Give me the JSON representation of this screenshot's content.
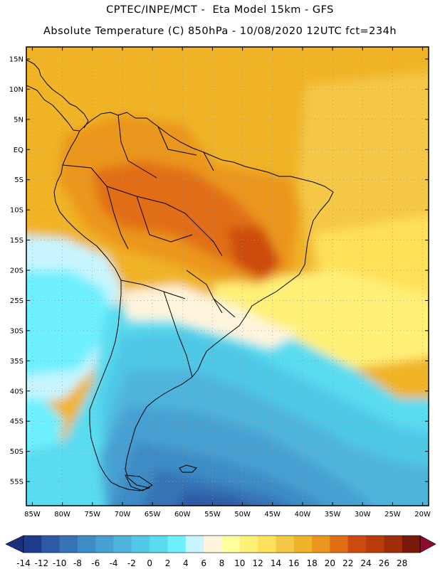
{
  "header": {
    "line1": "CPTEC/INPE/MCT -  Eta Model 15km - GFS",
    "line2": "Absolute Temperature (C) 850hPa - 10/08/2020 12UTC fct=234h"
  },
  "map": {
    "region": "South America",
    "projection": "lat-lon",
    "lon_range": [
      -86,
      -19
    ],
    "lat_range": [
      -59,
      17
    ],
    "lon_ticks": [
      "85W",
      "80W",
      "75W",
      "70W",
      "65W",
      "60W",
      "55W",
      "50W",
      "45W",
      "40W",
      "35W",
      "30W",
      "25W",
      "20W"
    ],
    "lat_ticks": [
      "15N",
      "10N",
      "5N",
      "EQ",
      "5S",
      "10S",
      "15S",
      "20S",
      "25S",
      "30S",
      "35S",
      "40S",
      "45S",
      "50S",
      "55S"
    ],
    "gridlines": "dotted",
    "field": "temperature at 850hPa"
  },
  "colorbar": {
    "labels": [
      "-14",
      "-12",
      "-10",
      "-8",
      "-6",
      "-4",
      "-2",
      "0",
      "2",
      "4",
      "6",
      "8",
      "10",
      "12",
      "14",
      "16",
      "18",
      "20",
      "22",
      "24",
      "26",
      "28"
    ],
    "colors": [
      "#1e3c8c",
      "#2d5aa5",
      "#3573b5",
      "#3d8cc5",
      "#46a0d2",
      "#4fb4dc",
      "#50c8e6",
      "#5adcf0",
      "#6ef0ff",
      "#c8f5ff",
      "#fff5dc",
      "#ffffa0",
      "#fff078",
      "#ffe15a",
      "#f5c846",
      "#f0b428",
      "#eb961e",
      "#e16e14",
      "#cd4b0f",
      "#b93c0a",
      "#a02d0a",
      "#78190a"
    ],
    "under_color": "#1c2f7e",
    "over_color": "#8c0a2d"
  }
}
